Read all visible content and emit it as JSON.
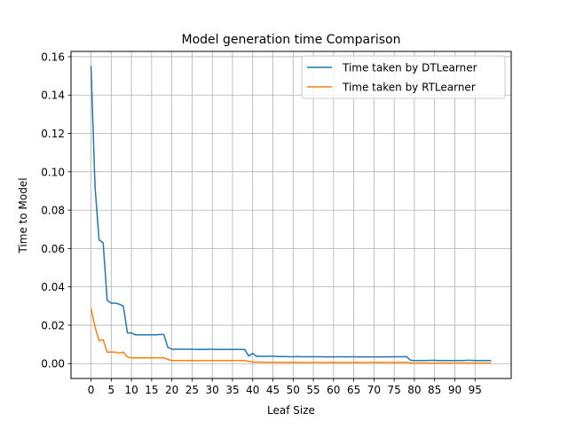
{
  "chart_data": {
    "type": "line",
    "title": "Model generation time Comparison",
    "xlabel": "Leaf Size",
    "ylabel": "Time to Model",
    "xlim": [
      -4.95,
      103.95
    ],
    "ylim": [
      -0.00775,
      0.16275
    ],
    "xticks": [
      0,
      5,
      10,
      15,
      20,
      25,
      30,
      35,
      40,
      45,
      50,
      55,
      60,
      65,
      70,
      75,
      80,
      85,
      90,
      95
    ],
    "xtick_labels": [
      "0",
      "5",
      "10",
      "15",
      "20",
      "25",
      "30",
      "35",
      "40",
      "45",
      "50",
      "55",
      "60",
      "65",
      "70",
      "75",
      "80",
      "85",
      "90",
      "95"
    ],
    "yticks": [
      0.0,
      0.02,
      0.04,
      0.06,
      0.08,
      0.1,
      0.12,
      0.14,
      0.16
    ],
    "ytick_labels": [
      "0.00",
      "0.02",
      "0.04",
      "0.06",
      "0.08",
      "0.10",
      "0.12",
      "0.14",
      "0.16"
    ],
    "grid": true,
    "legend_position": "top-right",
    "x": [
      0,
      1,
      2,
      3,
      4,
      5,
      6,
      7,
      8,
      9,
      10,
      11,
      12,
      13,
      14,
      15,
      16,
      17,
      18,
      19,
      20,
      21,
      22,
      23,
      24,
      25,
      26,
      27,
      28,
      29,
      30,
      31,
      32,
      33,
      34,
      35,
      36,
      37,
      38,
      39,
      40,
      41,
      42,
      43,
      44,
      45,
      46,
      47,
      48,
      49,
      50,
      51,
      52,
      53,
      54,
      55,
      56,
      57,
      58,
      59,
      60,
      61,
      62,
      63,
      64,
      65,
      66,
      67,
      68,
      69,
      70,
      71,
      72,
      73,
      74,
      75,
      76,
      77,
      78,
      79,
      80,
      81,
      82,
      83,
      84,
      85,
      86,
      87,
      88,
      89,
      90,
      91,
      92,
      93,
      94,
      95,
      96,
      97,
      98,
      99
    ],
    "series": [
      {
        "name": "Time taken by DTLearner",
        "color": "#1f77b4",
        "values": [
          0.155,
          0.092,
          0.0645,
          0.063,
          0.033,
          0.0315,
          0.0315,
          0.031,
          0.03,
          0.016,
          0.016,
          0.015,
          0.015,
          0.015,
          0.015,
          0.015,
          0.015,
          0.0152,
          0.0152,
          0.0085,
          0.0075,
          0.0075,
          0.0075,
          0.0075,
          0.0075,
          0.0075,
          0.0074,
          0.0074,
          0.0074,
          0.0075,
          0.0075,
          0.0074,
          0.0074,
          0.0074,
          0.0074,
          0.0074,
          0.0074,
          0.0074,
          0.0074,
          0.004,
          0.0053,
          0.0038,
          0.0038,
          0.0038,
          0.0038,
          0.0039,
          0.0037,
          0.0037,
          0.0037,
          0.0036,
          0.0036,
          0.0037,
          0.0036,
          0.0036,
          0.0036,
          0.0036,
          0.0036,
          0.0036,
          0.0035,
          0.0035,
          0.0035,
          0.0036,
          0.0036,
          0.0035,
          0.0036,
          0.0036,
          0.0035,
          0.0035,
          0.0035,
          0.0035,
          0.0035,
          0.0035,
          0.0035,
          0.0035,
          0.0035,
          0.0036,
          0.0036,
          0.0036,
          0.0037,
          0.0018,
          0.0016,
          0.0016,
          0.0016,
          0.0016,
          0.0017,
          0.0017,
          0.0016,
          0.0016,
          0.0016,
          0.0016,
          0.0016,
          0.0016,
          0.0016,
          0.0017,
          0.0017,
          0.0016,
          0.0016,
          0.0016,
          0.0016,
          0.0016
        ]
      },
      {
        "name": "Time taken by RTLearner",
        "color": "#ff7f0e",
        "values": [
          0.0288,
          0.019,
          0.012,
          0.0125,
          0.006,
          0.006,
          0.006,
          0.0055,
          0.006,
          0.0035,
          0.003,
          0.003,
          0.003,
          0.003,
          0.003,
          0.003,
          0.003,
          0.003,
          0.003,
          0.0022,
          0.0016,
          0.0016,
          0.0016,
          0.0016,
          0.0016,
          0.0016,
          0.0016,
          0.0016,
          0.0016,
          0.0016,
          0.0016,
          0.0016,
          0.0016,
          0.0016,
          0.0016,
          0.0016,
          0.0016,
          0.0016,
          0.0016,
          0.0012,
          0.0008,
          0.0008,
          0.0008,
          0.0007,
          0.0007,
          0.0007,
          0.0007,
          0.0007,
          0.0006,
          0.0007,
          0.0007,
          0.0006,
          0.0006,
          0.0006,
          0.0006,
          0.0006,
          0.0006,
          0.0006,
          0.0006,
          0.0006,
          0.0006,
          0.0006,
          0.0006,
          0.0006,
          0.0006,
          0.0006,
          0.0006,
          0.0006,
          0.0006,
          0.0006,
          0.0006,
          0.0006,
          0.0007,
          0.0006,
          0.0006,
          0.0006,
          0.0006,
          0.0006,
          0.0006,
          0.0004,
          0.0003,
          0.0003,
          0.0003,
          0.0003,
          0.0003,
          0.0003,
          0.0003,
          0.0003,
          0.0003,
          0.0003,
          0.0003,
          0.0003,
          0.0003,
          0.0003,
          0.0003,
          0.0003,
          0.0003,
          0.0003,
          0.0003,
          0.0003
        ]
      }
    ]
  }
}
